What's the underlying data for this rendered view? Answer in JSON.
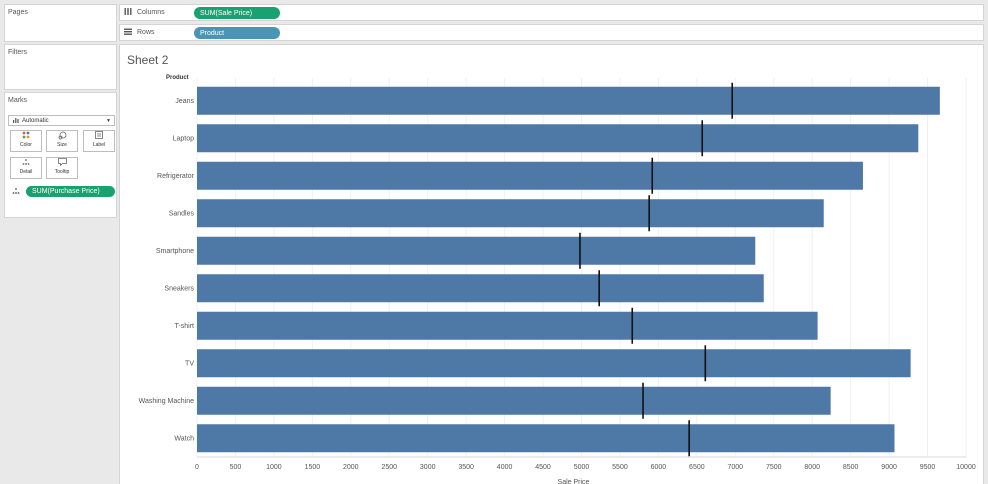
{
  "left_panels": {
    "pages": {
      "title": "Pages"
    },
    "filters": {
      "title": "Filters"
    },
    "marks": {
      "title": "Marks",
      "mark_type": "Automatic",
      "mark_type_icon": "bar-chart-icon",
      "cards": [
        {
          "label": "Color",
          "icon": "color-dots-icon"
        },
        {
          "label": "Size",
          "icon": "size-icon"
        },
        {
          "label": "Label",
          "icon": "label-icon"
        },
        {
          "label": "Detail",
          "icon": "detail-icon"
        },
        {
          "label": "Tooltip",
          "icon": "tooltip-icon"
        }
      ],
      "detail_pill": "SUM(Purchase Price)"
    }
  },
  "shelves": {
    "columns": {
      "label": "Columns",
      "pill": "SUM(Sale Price)"
    },
    "rows": {
      "label": "Rows",
      "pill": "Product"
    }
  },
  "view": {
    "sheet_title": "Sheet 2",
    "row_header": "Product"
  },
  "colors": {
    "bar": "#4e79a7",
    "reference_line": "#111111",
    "pill_measure": "#18a26f",
    "pill_dimension": "#4a95b6"
  },
  "chart_data": {
    "type": "bar",
    "orientation": "horizontal",
    "categories": [
      "Jeans",
      "Laptop",
      "Refrigerator",
      "Sandles",
      "Smartphone",
      "Sneakers",
      "T-shirt",
      "TV",
      "Washing Machine",
      "Watch"
    ],
    "series": [
      {
        "values": [
          9660,
          9380,
          8660,
          8150,
          7260,
          7370,
          8070,
          9280,
          8240,
          9070
        ]
      },
      {
        "values": [
          6960,
          6570,
          5920,
          5880,
          4980,
          5230,
          5660,
          6610,
          5800,
          6400
        ]
      }
    ],
    "xlabel": "Sale Price",
    "xlim": [
      0,
      10000
    ],
    "x_ticks": [
      0,
      500,
      1000,
      1500,
      2000,
      2500,
      3000,
      3500,
      4000,
      4500,
      5000,
      5500,
      6000,
      6500,
      7000,
      7500,
      8000,
      8500,
      9000,
      9500,
      10000
    ],
    "grid": "vertical"
  }
}
